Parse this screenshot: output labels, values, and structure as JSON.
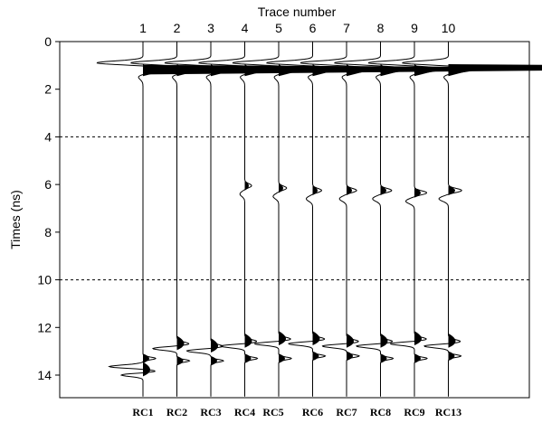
{
  "chart_data": {
    "type": "line",
    "title": "Trace number",
    "ylabel": "Times (ns)",
    "xlabel": "",
    "ylim": [
      0,
      15
    ],
    "y_ticks": [
      0,
      2,
      4,
      6,
      8,
      10,
      12,
      14
    ],
    "grid": "dashed horizontal at 4 and 10",
    "traces": [
      {
        "label": "1",
        "bottom_label": "RC1",
        "reflection_time": null,
        "late_main": 13.8,
        "late_second": 13.3
      },
      {
        "label": "2",
        "bottom_label": "RC2",
        "reflection_time": null,
        "late_main": 12.7,
        "late_second": 13.4
      },
      {
        "label": "3",
        "bottom_label": "RC3",
        "reflection_time": null,
        "late_main": 12.8,
        "late_second": 13.4
      },
      {
        "label": "4",
        "bottom_label": "RC4",
        "reflection_time": 6.2,
        "late_main": 12.6,
        "late_second": 13.3
      },
      {
        "label": "5",
        "bottom_label": "RC5",
        "reflection_time": 6.3,
        "late_main": 12.5,
        "late_second": 13.3
      },
      {
        "label": "6",
        "bottom_label": "RC6",
        "reflection_time": 6.4,
        "late_main": 12.5,
        "late_second": 13.2
      },
      {
        "label": "7",
        "bottom_label": "RC7",
        "reflection_time": 6.4,
        "late_main": 12.6,
        "late_second": 13.2
      },
      {
        "label": "8",
        "bottom_label": "RC8",
        "reflection_time": 6.4,
        "late_main": 12.6,
        "late_second": 13.3
      },
      {
        "label": "9",
        "bottom_label": "RC9",
        "reflection_time": 6.5,
        "late_main": 12.5,
        "late_second": 13.3
      },
      {
        "label": "10",
        "bottom_label": "RC13",
        "reflection_time": 6.4,
        "late_main": 12.6,
        "late_second": 13.2
      }
    ],
    "direct_wave_time": 1.0,
    "colors": {
      "trace": "#000000",
      "fill": "#000000",
      "grid": "#000000"
    }
  }
}
